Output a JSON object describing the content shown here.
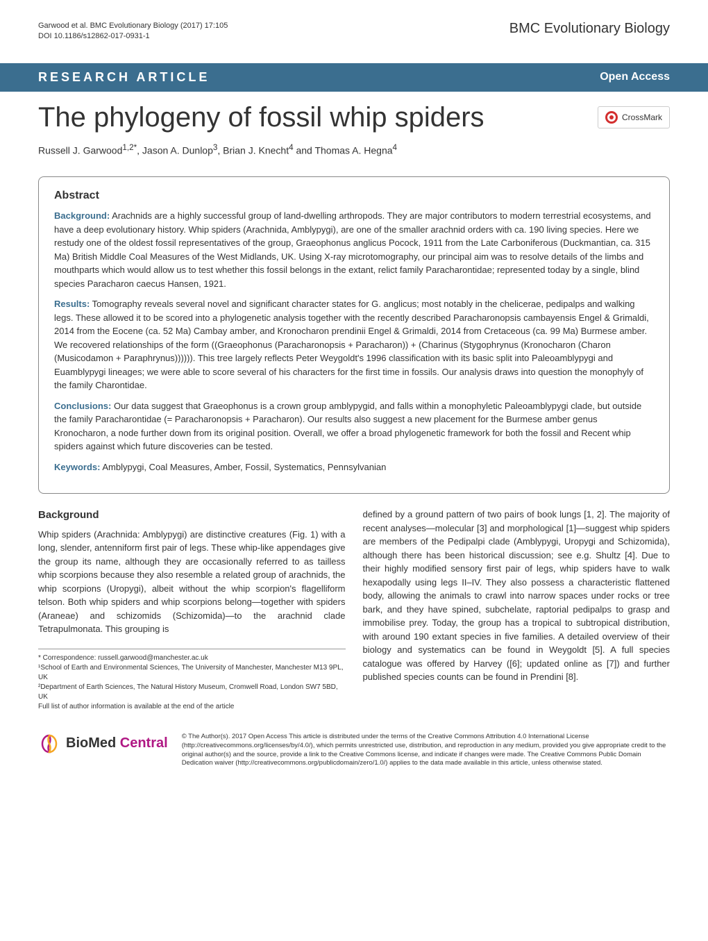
{
  "header": {
    "citation_line1": "Garwood et al. BMC Evolutionary Biology  (2017) 17:105",
    "citation_line2": "DOI 10.1186/s12862-017-0931-1",
    "journal_name": "BMC Evolutionary Biology"
  },
  "banner": {
    "article_type": "RESEARCH ARTICLE",
    "open_access": "Open Access"
  },
  "article": {
    "title": "The phylogeny of fossil whip spiders",
    "crossmark_label": "CrossMark",
    "authors_html": "Russell J. Garwood<sup>1,2*</sup>, Jason A. Dunlop<sup>3</sup>, Brian J. Knecht<sup>4</sup> and Thomas A. Hegna<sup>4</sup>"
  },
  "abstract": {
    "heading": "Abstract",
    "background_label": "Background:",
    "background_text": " Arachnids are a highly successful group of land-dwelling arthropods. They are major contributors to modern terrestrial ecosystems, and have a deep evolutionary history. Whip spiders (Arachnida, Amblypygi), are one of the smaller arachnid orders with ca. 190 living species. Here we restudy one of the oldest fossil representatives of the group, Graeophonus anglicus Pocock, 1911 from the Late Carboniferous (Duckmantian, ca. 315 Ma) British Middle Coal Measures of the West Midlands, UK. Using X-ray microtomography, our principal aim was to resolve details of the limbs and mouthparts which would allow us to test whether this fossil belongs in the extant, relict family Paracharontidae; represented today by a single, blind species Paracharon caecus Hansen, 1921.",
    "results_label": "Results:",
    "results_text": " Tomography reveals several novel and significant character states for G. anglicus; most notably in the chelicerae, pedipalps and walking legs. These allowed it to be scored into a phylogenetic analysis together with the recently described Paracharonopsis cambayensis Engel & Grimaldi, 2014 from the Eocene (ca. 52 Ma) Cambay amber, and Kronocharon prendinii Engel & Grimaldi, 2014 from Cretaceous (ca. 99 Ma) Burmese amber. We recovered relationships of the form ((Graeophonus (Paracharonopsis + Paracharon)) + (Charinus (Stygophrynus (Kronocharon (Charon (Musicodamon + Paraphrynus)))))). This tree largely reflects Peter Weygoldt's 1996 classification with its basic split into Paleoamblypygi and Euamblypygi lineages; we were able to score several of his characters for the first time in fossils. Our analysis draws into question the monophyly of the family Charontidae.",
    "conclusions_label": "Conclusions:",
    "conclusions_text": " Our data suggest that Graeophonus is a crown group amblypygid, and falls within a monophyletic Paleoamblypygi clade, but outside the family Paracharontidae (= Paracharonopsis + Paracharon). Our results also suggest a new placement for the Burmese amber genus Kronocharon, a node further down from its original position. Overall, we offer a broad phylogenetic framework for both the fossil and Recent whip spiders against which future discoveries can be tested.",
    "keywords_label": "Keywords:",
    "keywords_text": " Amblypygi, Coal Measures, Amber, Fossil, Systematics, Pennsylvanian"
  },
  "body": {
    "background_heading": "Background",
    "col1": "Whip spiders (Arachnida: Amblypygi) are distinctive creatures (Fig. 1) with a long, slender, antenniform first pair of legs. These whip-like appendages give the group its name, although they are occasionally referred to as tailless whip scorpions because they also resemble a related group of arachnids, the whip scorpions (Uropygi), albeit without the whip scorpion's flagelliform telson. Both whip spiders and whip scorpions belong—together with spiders (Araneae) and schizomids (Schizomida)—to the arachnid clade Tetrapulmonata. This grouping is",
    "col2": "defined by a ground pattern of two pairs of book lungs [1, 2]. The majority of recent analyses—molecular [3] and morphological [1]—suggest whip spiders are members of the Pedipalpi clade (Amblypygi, Uropygi and Schizomida), although there has been historical discussion; see e.g. Shultz [4]. Due to their highly modified sensory first pair of legs, whip spiders have to walk hexapodally using legs II–IV. They also possess a characteristic flattened body, allowing the animals to crawl into narrow spaces under rocks or tree bark, and they have spined, subchelate, raptorial pedipalps to grasp and immobilise prey. Today, the group has a tropical to subtropical distribution, with around 190 extant species in five families. A detailed overview of their biology and systematics can be found in Weygoldt [5]. A full species catalogue was offered by Harvey ([6]; updated online as [7]) and further published species counts can be found in Prendini [8]."
  },
  "footnotes": {
    "correspondence": "* Correspondence: russell.garwood@manchester.ac.uk",
    "aff1": "¹School of Earth and Environmental Sciences, The University of Manchester, Manchester M13 9PL, UK",
    "aff2": "²Department of Earth Sciences, The Natural History Museum, Cromwell Road, London SW7 5BD, UK",
    "full_list": "Full list of author information is available at the end of the article"
  },
  "footer": {
    "logo_bio": "BioMed",
    "logo_central": " Central",
    "license": "© The Author(s). 2017 Open Access This article is distributed under the terms of the Creative Commons Attribution 4.0 International License (http://creativecommons.org/licenses/by/4.0/), which permits unrestricted use, distribution, and reproduction in any medium, provided you give appropriate credit to the original author(s) and the source, provide a link to the Creative Commons license, and indicate if changes were made. The Creative Commons Public Domain Dedication waiver (http://creativecommons.org/publicdomain/zero/1.0/) applies to the data made available in this article, unless otherwise stated."
  },
  "colors": {
    "banner_bg": "#3b6e8f",
    "accent": "#3b6e8f",
    "magenta": "#b01884"
  }
}
